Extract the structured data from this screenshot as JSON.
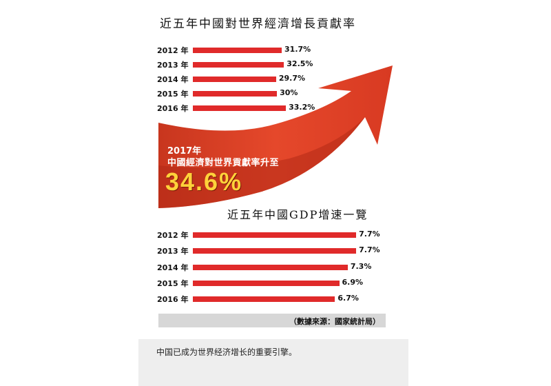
{
  "chart_data": [
    {
      "type": "bar",
      "orientation": "horizontal",
      "title": "近五年中國對世界經濟增長貢獻率",
      "categories": [
        "2012 年",
        "2013 年",
        "2014 年",
        "2015 年",
        "2016 年"
      ],
      "values": [
        31.7,
        32.5,
        29.7,
        30,
        33.2
      ],
      "value_labels": [
        "31.7%",
        "32.5%",
        "29.7%",
        "30%",
        "33.2%"
      ],
      "bar_color": "#e02a2a"
    },
    {
      "type": "bar",
      "orientation": "horizontal",
      "title": "近五年中國GDP增速一覽",
      "categories": [
        "2012 年",
        "2013 年",
        "2014 年",
        "2015 年",
        "2016 年"
      ],
      "values": [
        7.7,
        7.7,
        7.3,
        6.9,
        6.7
      ],
      "value_labels": [
        "7.7%",
        "7.7%",
        "7.3%",
        "6.9%",
        "6.7%"
      ],
      "bar_color": "#e02a2a"
    }
  ],
  "highlight": {
    "year": "2017年",
    "text": "中國經濟對世界貢獻率升至",
    "value": "34.6%",
    "arrow_color": "#e04a2a",
    "value_color": "#ffd23a"
  },
  "source": "（數據來源：國家統計局）",
  "caption": "中国已成为世界经济增长的重要引擎。"
}
